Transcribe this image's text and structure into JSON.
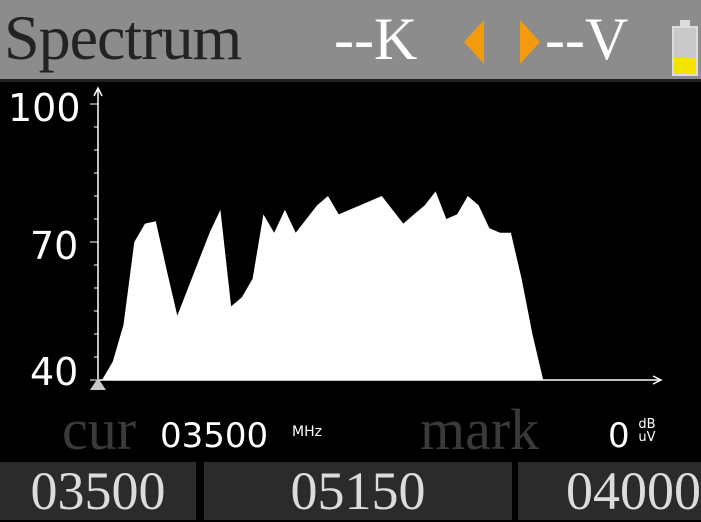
{
  "header": {
    "title": "Spectrum",
    "k_value": "--K",
    "v_value": "--V",
    "battery_level": 0.35,
    "arrow_color": "#f29b0f"
  },
  "chart_data": {
    "type": "area",
    "y_ticks": [
      "100",
      "70",
      "40"
    ],
    "ylim": [
      40,
      100
    ],
    "x": [
      0,
      2,
      4,
      6,
      8,
      10,
      12,
      14,
      16,
      18,
      20,
      22,
      24,
      26,
      28,
      30,
      32,
      34,
      36,
      38,
      40,
      42,
      44,
      46,
      48,
      50,
      52,
      54,
      56,
      58,
      60,
      62,
      64,
      66,
      68,
      70,
      72,
      74,
      76,
      78,
      80,
      82,
      84,
      86,
      88,
      90,
      92,
      94,
      96,
      98,
      100
    ],
    "values": [
      40,
      44,
      52,
      70,
      74,
      74.5,
      64,
      54,
      60,
      66,
      72,
      77,
      56,
      58,
      62,
      76,
      72,
      77,
      72,
      75,
      78,
      80,
      76,
      77,
      78,
      79,
      80,
      77,
      74,
      76,
      78,
      81,
      75,
      76,
      80,
      78,
      73,
      72,
      72,
      62,
      50,
      40,
      40,
      40,
      40,
      40,
      40,
      40,
      40,
      40,
      40
    ],
    "fill_color": "#ffffff"
  },
  "status": {
    "cur_label": "cur",
    "cur_value": "03500",
    "cur_unit": "MHz",
    "mark_label": "mark",
    "mark_value": "0",
    "mark_unit_top": "dB",
    "mark_unit_bottom": "uV"
  },
  "footer": {
    "cells": [
      "03500",
      "05150",
      "04000"
    ]
  }
}
